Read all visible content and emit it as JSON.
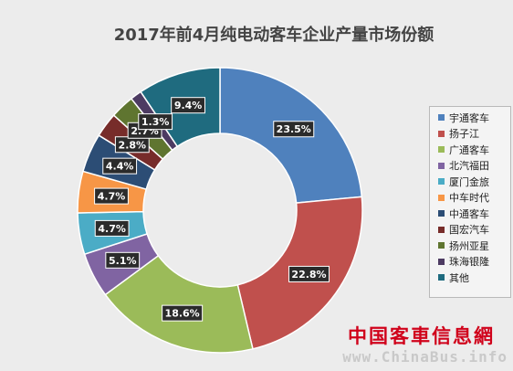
{
  "chart_data": {
    "type": "pie",
    "title": "2017年前4月纯电动客车企业产量市场份额",
    "categories": [
      "宇通客车",
      "扬子江",
      "广通客车",
      "北汽福田",
      "厦门金旅",
      "中车时代",
      "中通客车",
      "国宏汽车",
      "扬州亚星",
      "珠海银隆",
      "其他"
    ],
    "values": [
      23.5,
      22.8,
      18.6,
      5.1,
      4.7,
      4.7,
      4.4,
      2.8,
      2.7,
      1.3,
      9.4
    ],
    "labels": [
      "23.5%",
      "22.8%",
      "18.6%",
      "5.1%",
      "4.7%",
      "4.7%",
      "4.4%",
      "2.8%",
      "2.7%",
      "1.3%",
      "9.4%"
    ],
    "colors": [
      "#4f81bd",
      "#c0504d",
      "#9bbb59",
      "#8064a2",
      "#4bacc6",
      "#f79646",
      "#2c4d75",
      "#772c2a",
      "#5f7530",
      "#4d3b62",
      "#1f6b7f"
    ],
    "legend_position": "right",
    "donut": true
  },
  "watermark": {
    "cn": "中国客車信息網",
    "en": "www.ChinaBus.info"
  }
}
